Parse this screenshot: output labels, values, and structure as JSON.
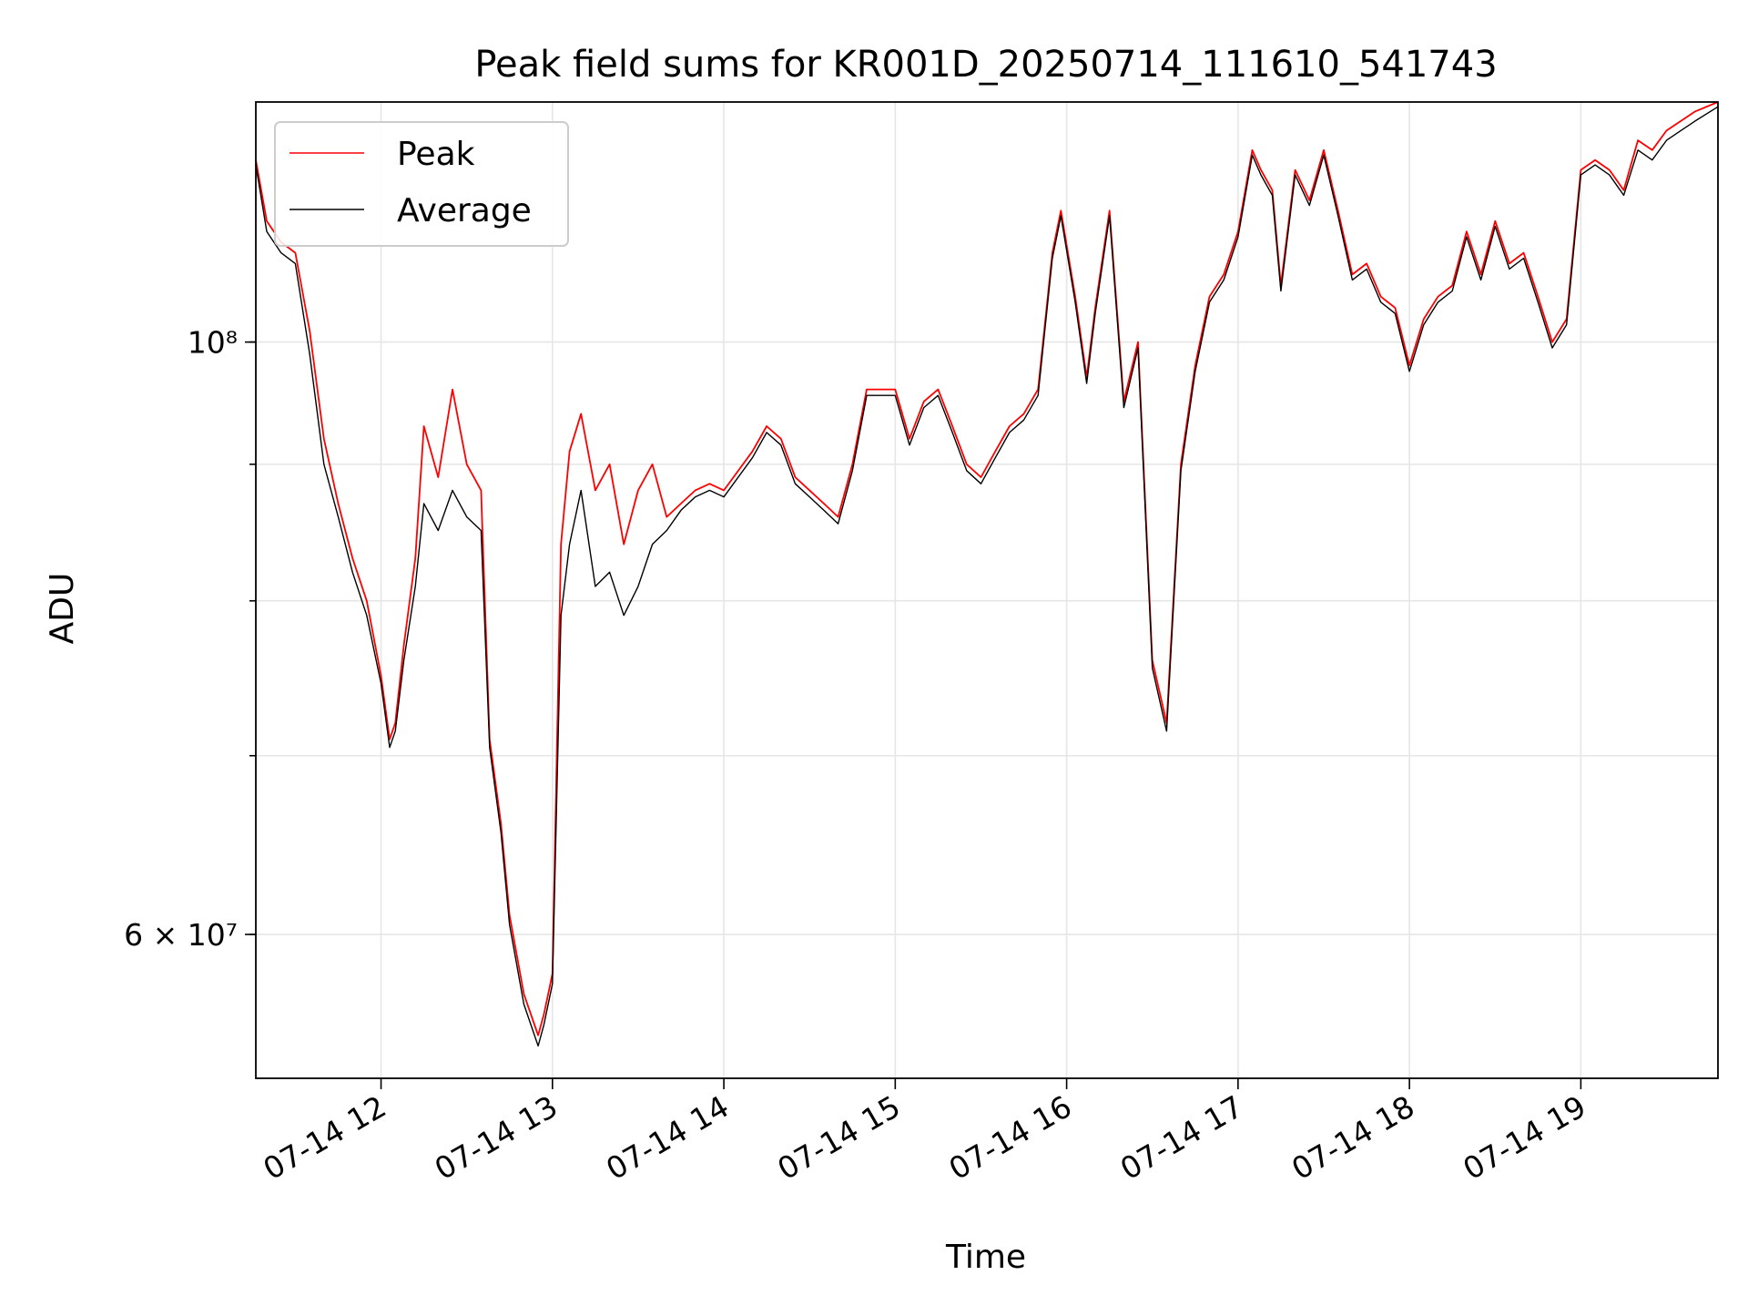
{
  "chart_data": {
    "type": "line",
    "title": "Peak field sums for KR001D_20250714_111610_541743",
    "xlabel": "Time",
    "ylabel": "ADU",
    "yscale": "log",
    "xlim": [
      "2025-07-14T11:16:10",
      "2025-07-14T19:48:00"
    ],
    "ylim": [
      53000000,
      123000000
    ],
    "x_ticks": [
      "07-14 12",
      "07-14 13",
      "07-14 14",
      "07-14 15",
      "07-14 16",
      "07-14 17",
      "07-14 18",
      "07-14 19"
    ],
    "y_ticks": [
      {
        "value": 60000000,
        "label": "6 × 10⁷"
      },
      {
        "value": 100000000,
        "label": "10⁸"
      }
    ],
    "grid": true,
    "legend": {
      "placement": "top-left",
      "entries": [
        "Peak",
        "Average"
      ]
    },
    "series": [
      {
        "name": "Peak",
        "color": "#ff0000",
        "x": [
          "2025-07-14T11:16:10",
          "2025-07-14T11:20:00",
          "2025-07-14T11:25:00",
          "2025-07-14T11:30:00",
          "2025-07-14T11:35:00",
          "2025-07-14T11:40:00",
          "2025-07-14T11:45:00",
          "2025-07-14T11:50:00",
          "2025-07-14T11:55:00",
          "2025-07-14T12:00:00",
          "2025-07-14T12:03:00",
          "2025-07-14T12:05:00",
          "2025-07-14T12:08:00",
          "2025-07-14T12:12:00",
          "2025-07-14T12:15:00",
          "2025-07-14T12:20:00",
          "2025-07-14T12:25:00",
          "2025-07-14T12:30:00",
          "2025-07-14T12:35:00",
          "2025-07-14T12:38:00",
          "2025-07-14T12:42:00",
          "2025-07-14T12:45:00",
          "2025-07-14T12:50:00",
          "2025-07-14T12:55:00",
          "2025-07-14T12:57:00",
          "2025-07-14T13:00:00",
          "2025-07-14T13:03:00",
          "2025-07-14T13:06:00",
          "2025-07-14T13:10:00",
          "2025-07-14T13:15:00",
          "2025-07-14T13:20:00",
          "2025-07-14T13:25:00",
          "2025-07-14T13:30:00",
          "2025-07-14T13:35:00",
          "2025-07-14T13:40:00",
          "2025-07-14T13:45:00",
          "2025-07-14T13:50:00",
          "2025-07-14T13:55:00",
          "2025-07-14T14:00:00",
          "2025-07-14T14:10:00",
          "2025-07-14T14:15:00",
          "2025-07-14T14:20:00",
          "2025-07-14T14:25:00",
          "2025-07-14T14:30:00",
          "2025-07-14T14:35:00",
          "2025-07-14T14:40:00",
          "2025-07-14T14:45:00",
          "2025-07-14T14:50:00",
          "2025-07-14T15:00:00",
          "2025-07-14T15:05:00",
          "2025-07-14T15:10:00",
          "2025-07-14T15:15:00",
          "2025-07-14T15:20:00",
          "2025-07-14T15:25:00",
          "2025-07-14T15:30:00",
          "2025-07-14T15:35:00",
          "2025-07-14T15:40:00",
          "2025-07-14T15:45:00",
          "2025-07-14T15:50:00",
          "2025-07-14T15:55:00",
          "2025-07-14T15:58:00",
          "2025-07-14T16:03:00",
          "2025-07-14T16:07:00",
          "2025-07-14T16:10:00",
          "2025-07-14T16:15:00",
          "2025-07-14T16:20:00",
          "2025-07-14T16:25:00",
          "2025-07-14T16:30:00",
          "2025-07-14T16:35:00",
          "2025-07-14T16:40:00",
          "2025-07-14T16:45:00",
          "2025-07-14T16:50:00",
          "2025-07-14T16:55:00",
          "2025-07-14T17:00:00",
          "2025-07-14T17:05:00",
          "2025-07-14T17:08:00",
          "2025-07-14T17:12:00",
          "2025-07-14T17:15:00",
          "2025-07-14T17:20:00",
          "2025-07-14T17:25:00",
          "2025-07-14T17:30:00",
          "2025-07-14T17:35:00",
          "2025-07-14T17:40:00",
          "2025-07-14T17:45:00",
          "2025-07-14T17:50:00",
          "2025-07-14T17:55:00",
          "2025-07-14T18:00:00",
          "2025-07-14T18:05:00",
          "2025-07-14T18:10:00",
          "2025-07-14T18:15:00",
          "2025-07-14T18:20:00",
          "2025-07-14T18:25:00",
          "2025-07-14T18:30:00",
          "2025-07-14T18:35:00",
          "2025-07-14T18:40:00",
          "2025-07-14T18:45:00",
          "2025-07-14T18:50:00",
          "2025-07-14T18:55:00",
          "2025-07-14T19:00:00",
          "2025-07-14T19:05:00",
          "2025-07-14T19:10:00",
          "2025-07-14T19:15:00",
          "2025-07-14T19:20:00",
          "2025-07-14T19:25:00",
          "2025-07-14T19:30:00",
          "2025-07-14T19:35:00",
          "2025-07-14T19:40:00",
          "2025-07-14T19:48:00"
        ],
        "values": [
          117000000,
          111000000,
          109000000,
          108000000,
          101000000,
          92000000,
          87000000,
          83000000,
          80000000,
          75000000,
          71000000,
          72000000,
          77000000,
          83000000,
          93000000,
          89000000,
          96000000,
          90000000,
          88000000,
          71000000,
          66000000,
          61000000,
          57000000,
          55000000,
          56000000,
          58000000,
          84000000,
          91000000,
          94000000,
          88000000,
          90000000,
          84000000,
          88000000,
          90000000,
          86000000,
          87000000,
          88000000,
          88500000,
          88000000,
          91000000,
          93000000,
          92000000,
          89000000,
          88000000,
          87000000,
          86000000,
          90000000,
          96000000,
          96000000,
          92000000,
          95000000,
          96000000,
          93000000,
          90000000,
          89000000,
          91000000,
          93000000,
          94000000,
          96000000,
          108000000,
          112000000,
          104000000,
          97000000,
          103000000,
          112000000,
          95000000,
          100000000,
          76000000,
          72000000,
          90000000,
          98000000,
          104000000,
          106000000,
          110000000,
          118000000,
          116000000,
          114000000,
          105000000,
          116000000,
          113000000,
          118000000,
          112000000,
          106000000,
          107000000,
          104000000,
          103000000,
          98000000,
          102000000,
          104000000,
          105000000,
          110000000,
          106000000,
          111000000,
          107000000,
          108000000,
          104000000,
          100000000,
          102000000,
          116000000,
          117000000,
          116000000,
          114000000,
          119000000,
          118000000,
          120000000,
          121000000,
          122000000,
          123000000
        ]
      },
      {
        "name": "Average",
        "color": "#000000",
        "x": [
          "2025-07-14T11:16:10",
          "2025-07-14T11:20:00",
          "2025-07-14T11:25:00",
          "2025-07-14T11:30:00",
          "2025-07-14T11:35:00",
          "2025-07-14T11:40:00",
          "2025-07-14T11:45:00",
          "2025-07-14T11:50:00",
          "2025-07-14T11:55:00",
          "2025-07-14T12:00:00",
          "2025-07-14T12:03:00",
          "2025-07-14T12:05:00",
          "2025-07-14T12:08:00",
          "2025-07-14T12:12:00",
          "2025-07-14T12:15:00",
          "2025-07-14T12:20:00",
          "2025-07-14T12:25:00",
          "2025-07-14T12:30:00",
          "2025-07-14T12:35:00",
          "2025-07-14T12:38:00",
          "2025-07-14T12:42:00",
          "2025-07-14T12:45:00",
          "2025-07-14T12:50:00",
          "2025-07-14T12:55:00",
          "2025-07-14T12:57:00",
          "2025-07-14T13:00:00",
          "2025-07-14T13:03:00",
          "2025-07-14T13:06:00",
          "2025-07-14T13:10:00",
          "2025-07-14T13:15:00",
          "2025-07-14T13:20:00",
          "2025-07-14T13:25:00",
          "2025-07-14T13:30:00",
          "2025-07-14T13:35:00",
          "2025-07-14T13:40:00",
          "2025-07-14T13:45:00",
          "2025-07-14T13:50:00",
          "2025-07-14T13:55:00",
          "2025-07-14T14:00:00",
          "2025-07-14T14:10:00",
          "2025-07-14T14:15:00",
          "2025-07-14T14:20:00",
          "2025-07-14T14:25:00",
          "2025-07-14T14:30:00",
          "2025-07-14T14:35:00",
          "2025-07-14T14:40:00",
          "2025-07-14T14:45:00",
          "2025-07-14T14:50:00",
          "2025-07-14T15:00:00",
          "2025-07-14T15:05:00",
          "2025-07-14T15:10:00",
          "2025-07-14T15:15:00",
          "2025-07-14T15:20:00",
          "2025-07-14T15:25:00",
          "2025-07-14T15:30:00",
          "2025-07-14T15:35:00",
          "2025-07-14T15:40:00",
          "2025-07-14T15:45:00",
          "2025-07-14T15:50:00",
          "2025-07-14T15:55:00",
          "2025-07-14T15:58:00",
          "2025-07-14T16:03:00",
          "2025-07-14T16:07:00",
          "2025-07-14T16:10:00",
          "2025-07-14T16:15:00",
          "2025-07-14T16:20:00",
          "2025-07-14T16:25:00",
          "2025-07-14T16:30:00",
          "2025-07-14T16:35:00",
          "2025-07-14T16:40:00",
          "2025-07-14T16:45:00",
          "2025-07-14T16:50:00",
          "2025-07-14T16:55:00",
          "2025-07-14T17:00:00",
          "2025-07-14T17:05:00",
          "2025-07-14T17:08:00",
          "2025-07-14T17:12:00",
          "2025-07-14T17:15:00",
          "2025-07-14T17:20:00",
          "2025-07-14T17:25:00",
          "2025-07-14T17:30:00",
          "2025-07-14T17:35:00",
          "2025-07-14T17:40:00",
          "2025-07-14T17:45:00",
          "2025-07-14T17:50:00",
          "2025-07-14T17:55:00",
          "2025-07-14T18:00:00",
          "2025-07-14T18:05:00",
          "2025-07-14T18:10:00",
          "2025-07-14T18:15:00",
          "2025-07-14T18:20:00",
          "2025-07-14T18:25:00",
          "2025-07-14T18:30:00",
          "2025-07-14T18:35:00",
          "2025-07-14T18:40:00",
          "2025-07-14T18:45:00",
          "2025-07-14T18:50:00",
          "2025-07-14T18:55:00",
          "2025-07-14T19:00:00",
          "2025-07-14T19:05:00",
          "2025-07-14T19:10:00",
          "2025-07-14T19:15:00",
          "2025-07-14T19:20:00",
          "2025-07-14T19:25:00",
          "2025-07-14T19:30:00",
          "2025-07-14T19:35:00",
          "2025-07-14T19:40:00",
          "2025-07-14T19:48:00"
        ],
        "values": [
          116500000,
          110000000,
          108000000,
          107000000,
          99000000,
          90000000,
          86000000,
          82000000,
          79000000,
          74500000,
          70500000,
          71500000,
          76000000,
          81000000,
          87000000,
          85000000,
          88000000,
          86000000,
          85000000,
          70500000,
          65500000,
          60500000,
          56500000,
          54500000,
          55500000,
          57500000,
          79000000,
          84000000,
          88000000,
          81000000,
          82000000,
          79000000,
          81000000,
          84000000,
          85000000,
          86500000,
          87500000,
          88000000,
          87500000,
          90500000,
          92500000,
          91500000,
          88500000,
          87500000,
          86500000,
          85500000,
          89500000,
          95500000,
          95500000,
          91500000,
          94500000,
          95500000,
          92500000,
          89500000,
          88500000,
          90500000,
          92500000,
          93500000,
          95500000,
          107500000,
          111500000,
          103500000,
          96500000,
          102500000,
          111500000,
          94500000,
          99500000,
          75500000,
          71500000,
          89500000,
          97500000,
          103500000,
          105500000,
          109500000,
          117500000,
          115500000,
          113500000,
          104500000,
          115500000,
          112500000,
          117500000,
          111500000,
          105500000,
          106500000,
          103500000,
          102500000,
          97500000,
          101500000,
          103500000,
          104500000,
          109500000,
          105500000,
          110500000,
          106500000,
          107500000,
          103500000,
          99500000,
          101500000,
          115500000,
          116500000,
          115500000,
          113500000,
          118000000,
          117000000,
          119000000,
          120000000,
          121000000,
          122500000
        ]
      }
    ]
  }
}
